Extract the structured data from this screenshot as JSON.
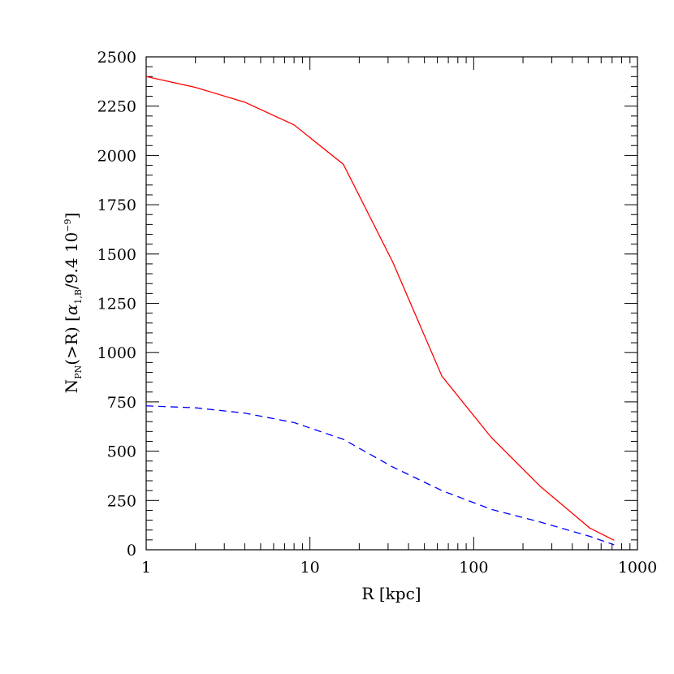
{
  "chart_data": {
    "type": "line",
    "x_scale": "log",
    "xlim": [
      1,
      1000
    ],
    "ylim": [
      0,
      2500
    ],
    "grid": false,
    "xlabel": "R [kpc]",
    "ylabel": {
      "main": "N",
      "sub": "PN",
      "mid": "(>R)  [",
      "alpha": "α",
      "alpha_sub": "1,B",
      "tail": "/9.4 10",
      "exp": "−9",
      "close": "]"
    },
    "x_ticks": [
      {
        "value": 1,
        "label": "1"
      },
      {
        "value": 10,
        "label": "10"
      },
      {
        "value": 100,
        "label": "100"
      },
      {
        "value": 1000,
        "label": "1000"
      }
    ],
    "y_ticks": [
      {
        "value": 0,
        "label": "0"
      },
      {
        "value": 250,
        "label": "250"
      },
      {
        "value": 500,
        "label": "500"
      },
      {
        "value": 750,
        "label": "750"
      },
      {
        "value": 1000,
        "label": "1000"
      },
      {
        "value": 1250,
        "label": "1250"
      },
      {
        "value": 1500,
        "label": "1500"
      },
      {
        "value": 1750,
        "label": "1750"
      },
      {
        "value": 2000,
        "label": "2000"
      },
      {
        "value": 2250,
        "label": "2250"
      },
      {
        "value": 2500,
        "label": "2500"
      }
    ],
    "series": [
      {
        "style": "solid",
        "color": "#ff0000",
        "points": [
          [
            1,
            2400
          ],
          [
            2,
            2345
          ],
          [
            4,
            2270
          ],
          [
            8,
            2155
          ],
          [
            16,
            1955
          ],
          [
            32,
            1460
          ],
          [
            64,
            880
          ],
          [
            128,
            570
          ],
          [
            256,
            320
          ],
          [
            512,
            110
          ],
          [
            720,
            48
          ]
        ]
      },
      {
        "style": "dashed",
        "color": "#0000ff",
        "points": [
          [
            1,
            730
          ],
          [
            2,
            720
          ],
          [
            4,
            693
          ],
          [
            8,
            645
          ],
          [
            16,
            560
          ],
          [
            32,
            420
          ],
          [
            64,
            300
          ],
          [
            128,
            205
          ],
          [
            256,
            140
          ],
          [
            512,
            68
          ],
          [
            720,
            25
          ]
        ]
      }
    ]
  }
}
